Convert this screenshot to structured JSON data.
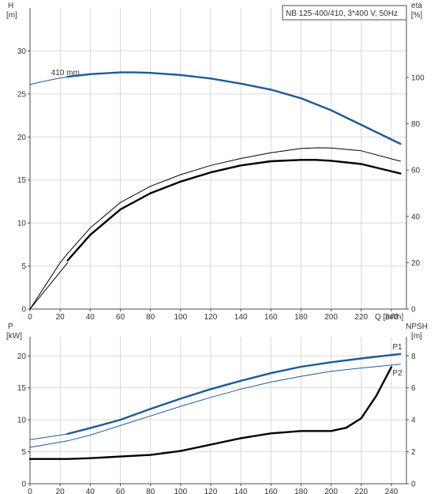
{
  "chart_data": [
    {
      "type": "line",
      "title": "NB 125-400/410, 3*400 V, 50Hz",
      "xlabel": "Q [m³/h]",
      "ylabel": "H [m]",
      "ylabel2": "eta [%]",
      "xlim": [
        0,
        250
      ],
      "ylim": [
        0,
        35
      ],
      "ylim2": [
        0,
        130
      ],
      "x_ticks": [
        0,
        20,
        40,
        60,
        80,
        100,
        120,
        140,
        160,
        180,
        200,
        220,
        240
      ],
      "y_ticks": [
        0,
        5,
        10,
        15,
        20,
        25,
        30
      ],
      "y2_ticks": [
        0,
        20,
        40,
        60,
        80,
        100
      ],
      "grid": true,
      "annotation": "410 mm",
      "series": [
        {
          "axis": "left",
          "color": "#1f5a96",
          "style": "thin",
          "x": [
            0,
            10,
            20,
            25
          ],
          "y": [
            26.1,
            26.5,
            26.85,
            27.0
          ]
        },
        {
          "axis": "left",
          "color": "#1f5a96",
          "style": "thick",
          "x": [
            25,
            40,
            60,
            70,
            80,
            100,
            120,
            140,
            160,
            180,
            200,
            220,
            246
          ],
          "y": [
            27.0,
            27.3,
            27.5,
            27.5,
            27.45,
            27.2,
            26.8,
            26.2,
            25.5,
            24.5,
            23.1,
            21.4,
            19.2
          ]
        },
        {
          "axis": "right",
          "color": "#000000",
          "style": "thin",
          "x": [
            0,
            10,
            20,
            25,
            40,
            60,
            80,
            100,
            120,
            140,
            160,
            180,
            190,
            200,
            220,
            246
          ],
          "y": [
            0,
            10,
            20,
            24,
            35,
            46,
            53,
            58,
            62,
            65,
            67.5,
            69.3,
            69.6,
            69.5,
            68.3,
            63.8
          ]
        },
        {
          "axis": "right",
          "color": "#000000",
          "style": "thin",
          "x": [
            0,
            10,
            20,
            25
          ],
          "y": [
            0,
            8,
            16,
            20
          ]
        },
        {
          "axis": "right",
          "color": "#000000",
          "style": "thick",
          "x": [
            25,
            40,
            60,
            80,
            100,
            120,
            140,
            160,
            180,
            190,
            200,
            220,
            246
          ],
          "y": [
            21,
            32,
            43,
            50,
            55,
            59,
            62,
            63.8,
            64.4,
            64.4,
            64.0,
            62.6,
            58.5
          ]
        }
      ]
    },
    {
      "type": "line",
      "xlabel": "",
      "ylabel": "P [kW]",
      "ylabel2": "NPSH [m]",
      "xlim": [
        0,
        250
      ],
      "ylim": [
        0,
        23
      ],
      "ylim2": [
        0,
        9.2
      ],
      "x_ticks": [
        0,
        20,
        40,
        60,
        80,
        100,
        120,
        140,
        160,
        180,
        200,
        220,
        240
      ],
      "y_ticks": [
        0,
        5,
        10,
        15,
        20
      ],
      "y2_ticks": [
        0,
        2,
        4,
        6,
        8
      ],
      "grid": true,
      "series": [
        {
          "name": "P1",
          "axis": "left",
          "color": "#1f5a96",
          "style": "thin",
          "x": [
            0,
            10,
            20,
            25
          ],
          "y": [
            6.9,
            7.25,
            7.6,
            7.8
          ]
        },
        {
          "name": "P1",
          "axis": "left",
          "color": "#1f5a96",
          "style": "thick",
          "x": [
            25,
            40,
            60,
            80,
            100,
            120,
            140,
            160,
            180,
            200,
            220,
            246
          ],
          "y": [
            7.8,
            8.7,
            10.0,
            11.7,
            13.3,
            14.8,
            16.1,
            17.3,
            18.3,
            19.0,
            19.6,
            20.3
          ]
        },
        {
          "name": "P2",
          "axis": "left",
          "color": "#1f5a96",
          "style": "thin",
          "x": [
            0,
            10,
            20,
            25,
            40,
            60,
            80,
            100,
            120,
            140,
            160,
            180,
            200,
            220,
            246
          ],
          "y": [
            5.7,
            6.1,
            6.5,
            6.7,
            7.6,
            9.1,
            10.6,
            12.1,
            13.5,
            14.8,
            15.9,
            16.8,
            17.6,
            18.1,
            18.7
          ]
        },
        {
          "axis": "right",
          "color": "#000000",
          "style": "thick",
          "x": [
            0,
            20,
            25,
            40,
            60,
            80,
            100,
            120,
            140,
            160,
            180,
            200,
            210,
            220,
            230,
            240
          ],
          "y": [
            1.55,
            1.55,
            1.55,
            1.6,
            1.7,
            1.8,
            2.05,
            2.45,
            2.85,
            3.15,
            3.3,
            3.3,
            3.5,
            4.1,
            5.5,
            7.3
          ]
        }
      ]
    }
  ]
}
